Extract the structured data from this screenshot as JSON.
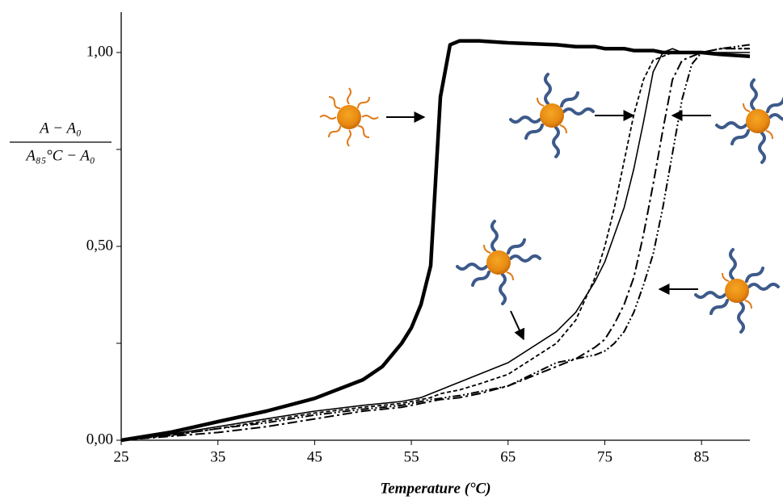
{
  "chart_data": {
    "type": "line",
    "x_label": "Temperature (°C)",
    "y_label": {
      "numerator": "A − A₀",
      "denominator": "A₈₅°C − A₀"
    },
    "x": [
      25,
      30,
      35,
      40,
      45,
      50,
      52,
      54,
      55,
      56,
      57,
      58,
      59,
      60,
      62,
      65,
      70,
      72,
      74,
      75,
      76,
      77,
      78,
      79,
      80,
      81,
      82,
      83,
      84,
      85,
      87,
      90
    ],
    "series": [
      {
        "color": "#000000",
        "width": 4.5,
        "dash": "none",
        "values": [
          0,
          0.02,
          0.048,
          0.075,
          0.108,
          0.156,
          0.19,
          0.25,
          0.29,
          0.35,
          0.45,
          0.885,
          1.02,
          1.03,
          1.03,
          1.025,
          1.02,
          1.015,
          1.015,
          1.01,
          1.01,
          1.01,
          1.005,
          1.005,
          1.005,
          1.0,
          1.0,
          1.0,
          1.0,
          1.0,
          0.995,
          0.99
        ]
      },
      {
        "color": "#000000",
        "width": 1.6,
        "dash": "none",
        "values": [
          0,
          0.015,
          0.035,
          0.055,
          0.075,
          0.09,
          0.095,
          0.1,
          0.105,
          0.11,
          0.12,
          0.13,
          0.14,
          0.15,
          0.17,
          0.2,
          0.28,
          0.33,
          0.41,
          0.46,
          0.53,
          0.6,
          0.7,
          0.82,
          0.95,
          1.0,
          1.01,
          1.0,
          1.0,
          1.0,
          1.0,
          1.0
        ]
      },
      {
        "color": "#000000",
        "width": 1.8,
        "dash": "5 3",
        "values": [
          0,
          0.012,
          0.03,
          0.05,
          0.07,
          0.085,
          0.09,
          0.095,
          0.1,
          0.105,
          0.11,
          0.12,
          0.125,
          0.13,
          0.145,
          0.17,
          0.25,
          0.31,
          0.42,
          0.5,
          0.6,
          0.72,
          0.84,
          0.93,
          0.98,
          0.99,
          1.0,
          1.0,
          1.0,
          1.0,
          1.01,
          1.01
        ]
      },
      {
        "color": "#000000",
        "width": 2,
        "dash": "12 4 3 4",
        "values": [
          0,
          0.01,
          0.02,
          0.035,
          0.055,
          0.075,
          0.08,
          0.085,
          0.09,
          0.095,
          0.1,
          0.105,
          0.107,
          0.11,
          0.12,
          0.14,
          0.19,
          0.21,
          0.24,
          0.26,
          0.3,
          0.35,
          0.42,
          0.53,
          0.66,
          0.8,
          0.93,
          0.98,
          0.99,
          1.0,
          1.01,
          1.01
        ]
      },
      {
        "color": "#000000",
        "width": 2,
        "dash": "10 3 2 3 2 3",
        "values": [
          0,
          0.012,
          0.03,
          0.045,
          0.065,
          0.08,
          0.085,
          0.09,
          0.095,
          0.1,
          0.105,
          0.108,
          0.112,
          0.115,
          0.125,
          0.14,
          0.2,
          0.21,
          0.22,
          0.23,
          0.25,
          0.28,
          0.33,
          0.4,
          0.48,
          0.6,
          0.74,
          0.88,
          0.97,
          1.0,
          1.01,
          1.02
        ]
      }
    ],
    "xlim": [
      25,
      90
    ],
    "xticks": [
      25,
      35,
      45,
      55,
      65,
      75,
      85
    ],
    "ylim": [
      0,
      1.1
    ],
    "yticks": [
      {
        "value": 0,
        "label": "0,00"
      },
      {
        "value": 0.5,
        "label": "0,50"
      },
      {
        "value": 1,
        "label": "1,00"
      }
    ],
    "yminor_ticks": [
      0.25,
      0.75
    ],
    "grid": false
  }
}
